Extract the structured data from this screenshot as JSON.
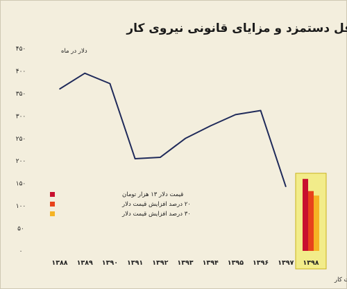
{
  "chart_data": {
    "type": "line",
    "title": "روند حداقل دستمزد و مزایای قانونی نیروی کار",
    "ylabel": "دلار در ماه",
    "ylim": [
      0,
      450
    ],
    "yticks": [
      0,
      50,
      100,
      150,
      200,
      250,
      300,
      350,
      400,
      450
    ],
    "ytick_labels": [
      "۰",
      "۵۰",
      "۱۰۰",
      "۱۵۰",
      "۲۰۰",
      "۲۵۰",
      "۳۰۰",
      "۳۵۰",
      "۴۰۰",
      "۴۵۰"
    ],
    "categories": [
      "۱۳۸۸",
      "۱۳۸۹",
      "۱۳۹۰",
      "۱۳۹۱",
      "۱۳۹۲",
      "۱۳۹۳",
      "۱۳۹۴",
      "۱۳۹۵",
      "۱۳۹۶",
      "۱۳۹۷",
      "۱۳۹۸"
    ],
    "series": [
      {
        "values": [
          360,
          395,
          372,
          205,
          208,
          250,
          278,
          303,
          312,
          143,
          null
        ],
        "color": "#1f2a5a"
      }
    ],
    "projection": {
      "category": "۱۳۹۸",
      "bars": [
        {
          "name": "قیمت دلار ۱۳ هزار تومان",
          "value": 160,
          "color": "#c8102e"
        },
        {
          "name": "۲۰ درصد افزایش قیمت دلار",
          "value": 133,
          "color": "#e8421b"
        },
        {
          "name": "۳۰ درصد افزایش قیمت دلار",
          "value": 123,
          "color": "#f5b324"
        }
      ],
      "highlight_color": "#f2ec8a"
    },
    "legend_position": "left",
    "grid": false
  },
  "source": "تحلیل و استنتاج: احسان سلطانی بر اساس داده های بانک مرکزی و وزارت کار"
}
